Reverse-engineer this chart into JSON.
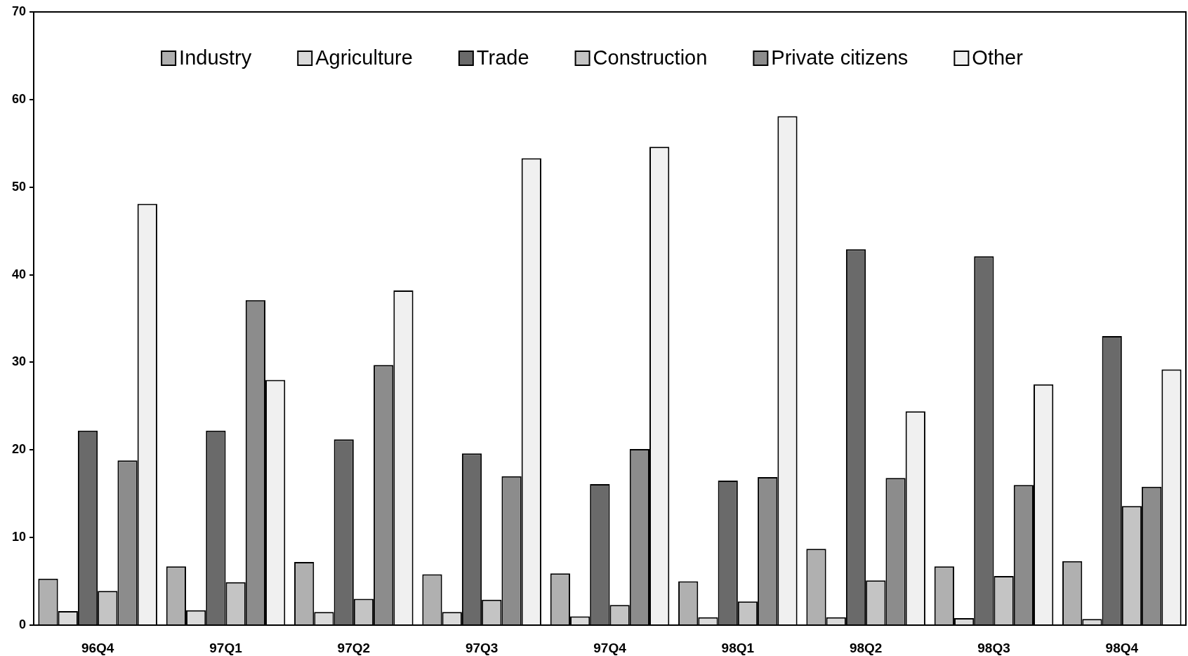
{
  "chart_data": {
    "type": "bar",
    "categories": [
      "96Q4",
      "97Q1",
      "97Q2",
      "97Q3",
      "97Q4",
      "98Q1",
      "98Q2",
      "98Q3",
      "98Q4"
    ],
    "series": [
      {
        "name": "Industry",
        "color": "#b0b0b0",
        "values": [
          5.3,
          6.7,
          7.2,
          5.8,
          5.9,
          5.0,
          8.7,
          6.7,
          7.3
        ]
      },
      {
        "name": "Agriculture",
        "color": "#dadada",
        "values": [
          1.6,
          1.7,
          1.5,
          1.5,
          1.0,
          0.9,
          0.9,
          0.8,
          0.7
        ]
      },
      {
        "name": "Trade",
        "color": "#6a6a6a",
        "values": [
          22.2,
          22.2,
          21.2,
          19.6,
          16.1,
          16.5,
          42.9,
          42.1,
          33.0
        ]
      },
      {
        "name": "Construction",
        "color": "#c4c4c4",
        "values": [
          3.9,
          4.9,
          3.0,
          2.9,
          2.3,
          2.7,
          5.1,
          5.6,
          13.6
        ]
      },
      {
        "name": "Private citizens",
        "color": "#8c8c8c",
        "values": [
          18.8,
          37.1,
          29.7,
          17.0,
          20.1,
          16.9,
          16.8,
          16.0,
          15.8
        ]
      },
      {
        "name": "Other",
        "color": "#f0f0f0",
        "values": [
          48.1,
          28.0,
          38.2,
          53.3,
          54.6,
          58.1,
          24.4,
          27.5,
          29.2
        ]
      }
    ],
    "ylim": [
      0,
      70
    ],
    "yticks": [
      0,
      10,
      20,
      30,
      40,
      50,
      60,
      70
    ],
    "legend": "top"
  }
}
